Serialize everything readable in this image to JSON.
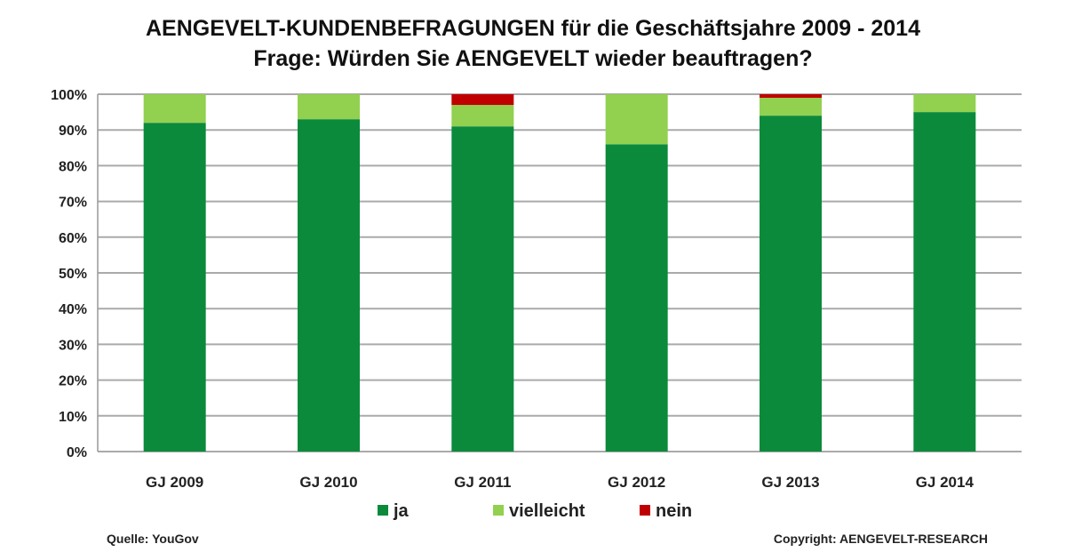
{
  "chart_data": {
    "type": "bar",
    "stacked": true,
    "title": "AENGEVELT-KUNDENBEFRAGUNGEN für die Geschäftsjahre 2009 - 2014",
    "subtitle": "Frage: Würden Sie AENGEVELT wieder beauftragen?",
    "categories": [
      "GJ 2009",
      "GJ 2010",
      "GJ 2011",
      "GJ 2012",
      "GJ 2013",
      "GJ 2014"
    ],
    "series": [
      {
        "name": "ja",
        "color": "#0b8a3c",
        "values": [
          92,
          93,
          91,
          86,
          94,
          95
        ]
      },
      {
        "name": "vielleicht",
        "color": "#92d050",
        "values": [
          8,
          7,
          6,
          14,
          5,
          5
        ]
      },
      {
        "name": "nein",
        "color": "#c00000",
        "values": [
          0,
          0,
          3,
          0,
          1,
          0
        ]
      }
    ],
    "ylim": [
      0,
      100
    ],
    "yticks": [
      "0%",
      "10%",
      "20%",
      "30%",
      "40%",
      "50%",
      "60%",
      "70%",
      "80%",
      "90%",
      "100%"
    ],
    "grid": true,
    "legend_position": "bottom"
  },
  "footer": {
    "source": "Quelle: YouGov",
    "copyright": "Copyright: AENGEVELT-RESEARCH"
  }
}
